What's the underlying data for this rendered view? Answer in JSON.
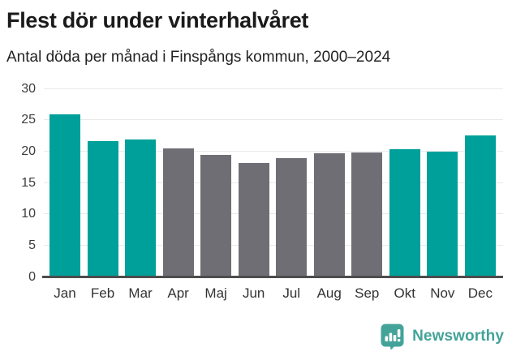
{
  "header": {
    "title": "Flest dör under vinterhalvåret",
    "subtitle": "Antal döda per månad i Finspångs kommun, 2000–2024"
  },
  "chart_data": {
    "type": "bar",
    "title": "Flest dör under vinterhalvåret",
    "subtitle": "Antal döda per månad i Finspångs kommun, 2000–2024",
    "categories": [
      "Jan",
      "Feb",
      "Mar",
      "Apr",
      "Maj",
      "Jun",
      "Jul",
      "Aug",
      "Sep",
      "Okt",
      "Nov",
      "Dec"
    ],
    "values": [
      25.9,
      21.7,
      21.9,
      20.5,
      19.5,
      18.2,
      19.0,
      19.7,
      19.9,
      20.4,
      20.0,
      22.6
    ],
    "bar_colors": [
      "#00A09A",
      "#00A09A",
      "#00A09A",
      "#706E75",
      "#706E75",
      "#706E75",
      "#706E75",
      "#706E75",
      "#706E75",
      "#00A09A",
      "#00A09A",
      "#00A09A"
    ],
    "xlabel": "",
    "ylabel": "",
    "y_ticks": [
      0,
      5,
      10,
      15,
      20,
      25,
      30
    ],
    "ylim": [
      0,
      30
    ],
    "grid": true,
    "legend": false,
    "highlight_color": "#00A09A",
    "muted_color": "#706E75"
  },
  "footer": {
    "brand_label": "Newsworthy",
    "brand_color": "#43A399"
  },
  "colors": {
    "background": "#FFFFFF",
    "title_text": "#1A1A1A",
    "subtitle_text": "#232323",
    "axis_text": "#3D3D3D",
    "gridline": "#E9E9E9",
    "baseline": "#4D4D4D"
  }
}
